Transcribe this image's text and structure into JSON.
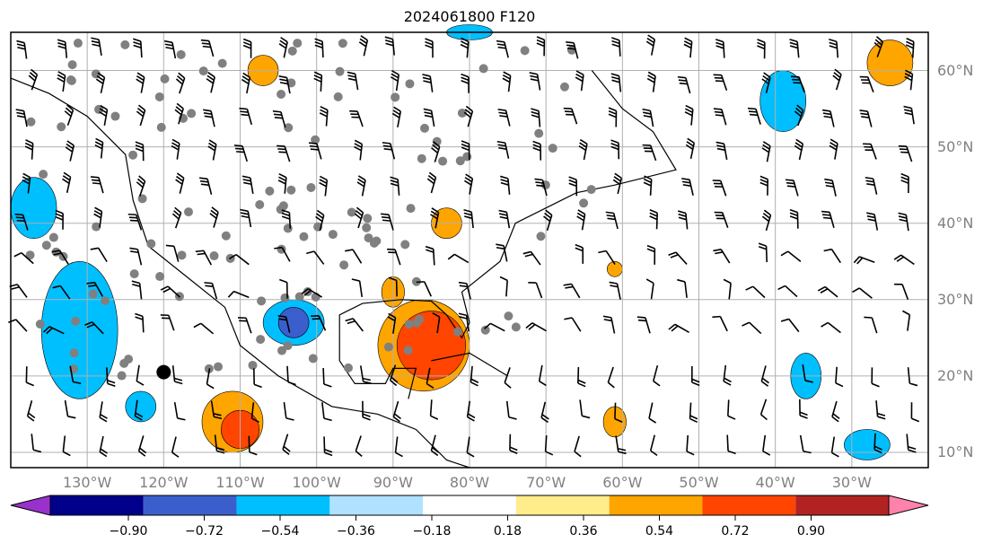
{
  "title": "2024061800 F120",
  "map": {
    "extent": {
      "lon": [
        -140,
        -20
      ],
      "lat": [
        8,
        65
      ]
    },
    "lat_labels": [
      {
        "lat": 60,
        "text": "60°N"
      },
      {
        "lat": 50,
        "text": "50°N"
      },
      {
        "lat": 40,
        "text": "40°N"
      },
      {
        "lat": 30,
        "text": "30°N"
      },
      {
        "lat": 20,
        "text": "20°N"
      },
      {
        "lat": 10,
        "text": "10°N"
      }
    ],
    "lon_labels": [
      {
        "lon": -130,
        "text": "130°W"
      },
      {
        "lon": -120,
        "text": "120°W"
      },
      {
        "lon": -110,
        "text": "110°W"
      },
      {
        "lon": -100,
        "text": "100°W"
      },
      {
        "lon": -90,
        "text": "90°W"
      },
      {
        "lon": -80,
        "text": "80°W"
      },
      {
        "lon": -70,
        "text": "70°W"
      },
      {
        "lon": -60,
        "text": "60°W"
      },
      {
        "lon": -50,
        "text": "50°W"
      },
      {
        "lon": -40,
        "text": "40°W"
      },
      {
        "lon": -30,
        "text": "30°W"
      }
    ]
  },
  "colorbar": {
    "colors": [
      "#9932cc",
      "#00008b",
      "#3a5fcd",
      "#00bfff",
      "#b0e2ff",
      "#ffffff",
      "#ffec8b",
      "#ffa500",
      "#ff4500",
      "#b22222",
      "#ff82ab"
    ],
    "ticks": [
      "−0.90",
      "−0.72",
      "−0.54",
      "−0.36",
      "−0.18",
      "0.18",
      "0.36",
      "0.54",
      "0.72",
      "0.90"
    ]
  }
}
